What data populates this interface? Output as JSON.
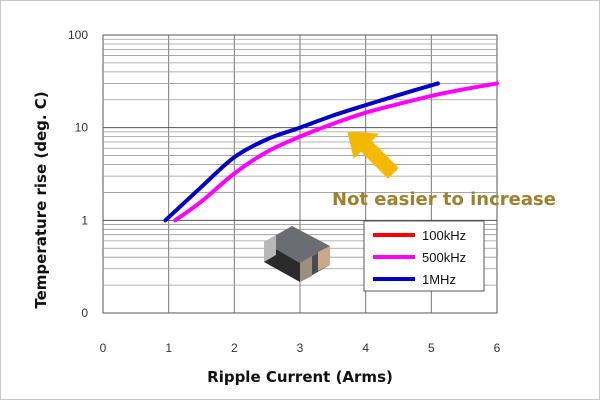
{
  "chart_data": {
    "type": "line",
    "title": "",
    "xlabel": "Ripple Current (Arms)",
    "ylabel": "Temperature rise (deg. C)",
    "xlim": [
      0,
      6
    ],
    "ylim": [
      0,
      100
    ],
    "yscale": "log",
    "xticks": [
      "0",
      "1",
      "2",
      "3",
      "4",
      "5",
      "6"
    ],
    "yticks": [
      "0",
      "1",
      "10",
      "100"
    ],
    "grid": true,
    "legend_position": "bottom-right",
    "series": [
      {
        "name": "100kHz",
        "color": "#ff0000",
        "x": [],
        "y": []
      },
      {
        "name": "500kHz",
        "color": "#ff00ff",
        "x": [
          1.1,
          1.5,
          2.0,
          2.5,
          3.0,
          3.5,
          4.0,
          4.5,
          5.0,
          5.5,
          6.0
        ],
        "y": [
          1.0,
          1.6,
          3.2,
          5.5,
          8.0,
          11.0,
          14.5,
          18.0,
          22.0,
          26.0,
          30.0
        ]
      },
      {
        "name": "1MHz",
        "color": "#0000c8",
        "x": [
          0.95,
          1.5,
          2.0,
          2.5,
          3.0,
          3.5,
          4.0,
          4.5,
          5.1
        ],
        "y": [
          1.0,
          2.3,
          4.8,
          7.5,
          10.0,
          13.5,
          17.5,
          22.5,
          30.0
        ]
      }
    ],
    "annotations": [
      {
        "text": "Not easier to increase",
        "color": "#a0802a"
      }
    ]
  },
  "icons": {
    "arrow": "arrow-up-left-icon",
    "arrow_color": "#f5b800",
    "component": "chip-capacitor-icon"
  }
}
